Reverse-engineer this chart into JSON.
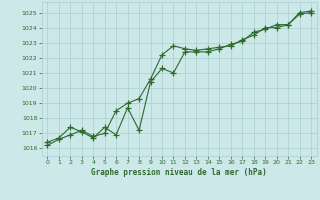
{
  "line1_x": [
    0,
    1,
    2,
    3,
    4,
    5,
    6,
    7,
    8,
    9,
    10,
    11,
    12,
    13,
    14,
    15,
    16,
    17,
    18,
    19,
    20,
    21,
    22,
    23
  ],
  "line1_y": [
    1016.2,
    1016.6,
    1016.9,
    1017.2,
    1016.8,
    1017.0,
    1018.5,
    1019.0,
    1019.3,
    1020.6,
    1022.2,
    1022.8,
    1022.6,
    1022.5,
    1022.6,
    1022.7,
    1022.8,
    1023.2,
    1023.5,
    1024.0,
    1024.0,
    1024.2,
    1025.0,
    1025.1
  ],
  "line2_x": [
    0,
    1,
    2,
    3,
    4,
    5,
    6,
    7,
    8,
    9,
    10,
    11,
    12,
    13,
    14,
    15,
    16,
    17,
    18,
    19,
    20,
    21,
    22,
    23
  ],
  "line2_y": [
    1016.4,
    1016.7,
    1017.4,
    1017.1,
    1016.7,
    1017.4,
    1016.9,
    1018.7,
    1017.2,
    1020.4,
    1021.3,
    1021.0,
    1022.4,
    1022.4,
    1022.4,
    1022.6,
    1022.9,
    1023.1,
    1023.7,
    1023.9,
    1024.2,
    1024.2,
    1024.9,
    1025.0
  ],
  "line_color": "#2d6a2d",
  "bg_color": "#cce8e8",
  "grid_color": "#aacece",
  "xlabel": "Graphe pression niveau de la mer (hPa)",
  "ylim": [
    1015.5,
    1025.7
  ],
  "yticks": [
    1016,
    1017,
    1018,
    1019,
    1020,
    1021,
    1022,
    1023,
    1024,
    1025
  ],
  "xticks": [
    0,
    1,
    2,
    3,
    4,
    5,
    6,
    7,
    8,
    9,
    10,
    11,
    12,
    13,
    14,
    15,
    16,
    17,
    18,
    19,
    20,
    21,
    22,
    23
  ],
  "marker": "+",
  "markersize": 4,
  "linewidth": 0.8
}
